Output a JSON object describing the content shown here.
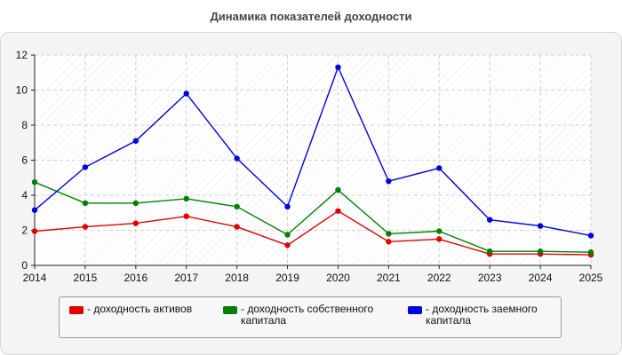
{
  "chart_data": {
    "type": "line",
    "title": "Динамика показателей доходности",
    "categories": [
      "2014",
      "2015",
      "2016",
      "2017",
      "2018",
      "2019",
      "2020",
      "2021",
      "2022",
      "2023",
      "2024",
      "2025"
    ],
    "ylim": [
      0,
      12
    ],
    "yticks": [
      0,
      2,
      4,
      6,
      8,
      10,
      12
    ],
    "grid": true,
    "legend_position": "bottom",
    "series": [
      {
        "name": "- доходность активов",
        "color": "#e00000",
        "values": [
          1.95,
          2.2,
          2.4,
          2.8,
          2.2,
          1.15,
          3.1,
          1.35,
          1.5,
          0.65,
          0.65,
          0.6
        ]
      },
      {
        "name": "- доходность собственного капитала",
        "color": "#008000",
        "values": [
          4.75,
          3.55,
          3.55,
          3.8,
          3.35,
          1.75,
          4.3,
          1.8,
          1.95,
          0.8,
          0.8,
          0.75
        ]
      },
      {
        "name": "- доходность заемного капитала",
        "color": "#0000e0",
        "values": [
          3.15,
          5.6,
          7.1,
          9.8,
          6.1,
          3.35,
          11.3,
          4.8,
          5.55,
          2.6,
          2.25,
          1.7
        ]
      }
    ]
  }
}
